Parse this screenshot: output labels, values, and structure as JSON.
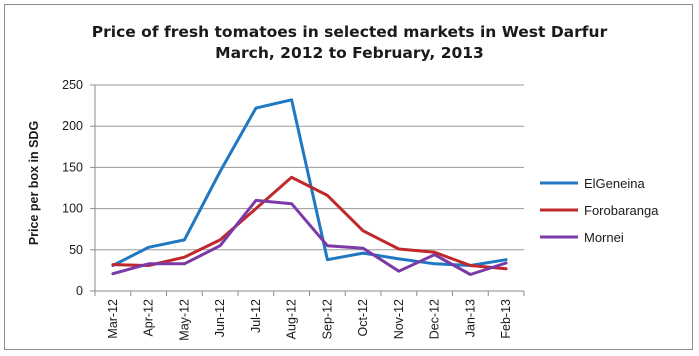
{
  "chart_data": {
    "type": "line",
    "title": [
      "Price of fresh tomatoes in selected markets in West Darfur",
      "March, 2012 to February, 2013"
    ],
    "xlabel": "",
    "ylabel": "Price per box in SDG",
    "ylim": [
      0,
      250
    ],
    "yticks": [
      0,
      50,
      100,
      150,
      200,
      250
    ],
    "grid": true,
    "legend": "right",
    "categories": [
      "Mar-12",
      "Apr-12",
      "May-12",
      "Jun-12",
      "Jul-12",
      "Aug-12",
      "Sep-12",
      "Oct-12",
      "Nov-12",
      "Dec-12",
      "Jan-13",
      "Feb-13"
    ],
    "series": [
      {
        "name": "ElGeneina",
        "color": "#1f78c1",
        "values": [
          31,
          53,
          62,
          145,
          222,
          232,
          38,
          46,
          39,
          33,
          31,
          38
        ]
      },
      {
        "name": "Forobaranga",
        "color": "#c0282b",
        "values": [
          32,
          31,
          41,
          62,
          100,
          138,
          116,
          73,
          51,
          47,
          31,
          27
        ]
      },
      {
        "name": "Mornei",
        "color": "#7b3aa6",
        "values": [
          21,
          33,
          33,
          55,
          110,
          106,
          55,
          52,
          24,
          44,
          20,
          34
        ]
      }
    ]
  }
}
